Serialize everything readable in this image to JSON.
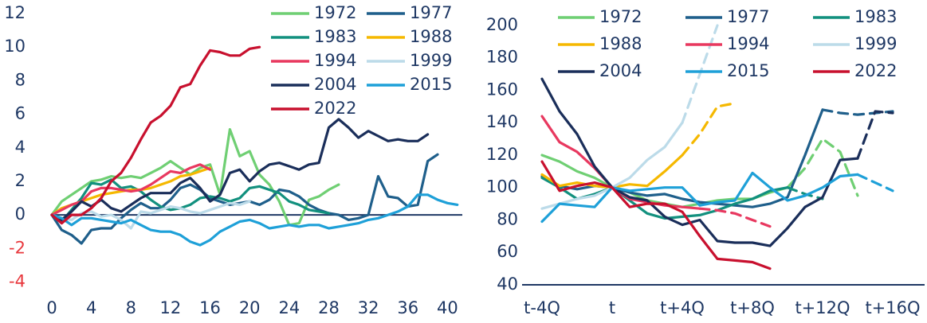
{
  "chart_data": [
    {
      "type": "line",
      "x": [
        0,
        1,
        2,
        3,
        4,
        5,
        6,
        7,
        8,
        9,
        10,
        11,
        12,
        13,
        14,
        15,
        16,
        17,
        18,
        19,
        20,
        21,
        22,
        23,
        24,
        25,
        26,
        27,
        28,
        29,
        30,
        31,
        32,
        33,
        34,
        35,
        36,
        37,
        38,
        39,
        40,
        41
      ],
      "xlim": [
        0,
        41.5
      ],
      "xticks": [
        0,
        4,
        8,
        12,
        16,
        20,
        24,
        28,
        32,
        36,
        40
      ],
      "ylim": [
        -4.5,
        12.5
      ],
      "yticks": [
        -4,
        -2,
        0,
        2,
        4,
        6,
        8,
        10,
        12
      ],
      "negative_tick_color": "#e8383d",
      "series": [
        {
          "name": "1972",
          "color": "#6fcf73",
          "values": [
            0,
            0.8,
            1.2,
            1.6,
            2,
            2.1,
            2.3,
            2.2,
            2.3,
            2.2,
            2.5,
            2.8,
            3.2,
            2.8,
            2.4,
            2.8,
            3.0,
            1.2,
            5.1,
            3.5,
            3.8,
            2.4,
            1.8,
            0.8,
            -0.6,
            -0.5,
            0.9,
            1.1,
            1.5,
            1.8,
            null,
            null,
            null,
            null,
            null,
            null,
            null,
            null,
            null,
            null,
            null,
            null
          ]
        },
        {
          "name": "1977",
          "color": "#1f5f8b",
          "values": [
            0,
            -0.9,
            -1.2,
            -1.7,
            -0.9,
            -0.8,
            -0.8,
            -0.2,
            0.3,
            0.7,
            0.4,
            0.4,
            0.9,
            1.6,
            1.8,
            1.5,
            1.0,
            0.8,
            0.6,
            0.7,
            0.8,
            0.6,
            0.9,
            1.5,
            1.4,
            1.1,
            0.6,
            0.3,
            0.1,
            0,
            -0.3,
            -0.2,
            0,
            2.3,
            1.1,
            1.0,
            0.5,
            0.6,
            3.2,
            3.6,
            null,
            null
          ]
        },
        {
          "name": "1983",
          "color": "#12907e",
          "values": [
            0,
            -0.4,
            0.3,
            1.0,
            1.9,
            1.8,
            2.1,
            1.6,
            1.7,
            1.4,
            0.9,
            0.5,
            0.3,
            0.4,
            0.6,
            1.0,
            1.1,
            1.0,
            0.8,
            1.0,
            1.6,
            1.7,
            1.5,
            1.3,
            0.8,
            0.6,
            0.3,
            0.2,
            0.1,
            null,
            null,
            null,
            null,
            null,
            null,
            null,
            null,
            null,
            null,
            null,
            null,
            null
          ]
        },
        {
          "name": "1988",
          "color": "#f5b800",
          "values": [
            0,
            0.4,
            0.6,
            0.8,
            1.0,
            1.2,
            1.3,
            1.4,
            1.5,
            1.5,
            1.6,
            1.8,
            2.0,
            2.3,
            2.4,
            2.6,
            2.8,
            null,
            null,
            null,
            null,
            null,
            null,
            null,
            null,
            null,
            null,
            null,
            null,
            null,
            null,
            null,
            null,
            null,
            null,
            null,
            null,
            null,
            null,
            null,
            null,
            null
          ]
        },
        {
          "name": "1994",
          "color": "#e8385f",
          "values": [
            0,
            0.3,
            0.6,
            0.8,
            1.4,
            1.6,
            1.6,
            1.5,
            1.4,
            1.5,
            1.8,
            2.2,
            2.6,
            2.5,
            2.8,
            3.0,
            2.7,
            null,
            null,
            null,
            null,
            null,
            null,
            null,
            null,
            null,
            null,
            null,
            null,
            null,
            null,
            null,
            null,
            null,
            null,
            null,
            null,
            null,
            null,
            null,
            null,
            null
          ]
        },
        {
          "name": "1999",
          "color": "#bcdbe9",
          "values": [
            0,
            -0.2,
            -0.3,
            0.1,
            0.2,
            -0.1,
            0,
            -0.3,
            -0.8,
            0.2,
            0.1,
            0.3,
            0.5,
            0.4,
            0.2,
            0.1,
            0.3,
            0.5,
            0.7,
            0.6,
            0.8,
            null,
            null,
            null,
            null,
            null,
            null,
            null,
            null,
            null,
            null,
            null,
            null,
            null,
            null,
            null,
            null,
            null,
            null,
            null,
            null,
            null
          ]
        },
        {
          "name": "2004",
          "color": "#1a2e5a",
          "values": [
            0,
            -0.3,
            0.2,
            0.8,
            0.5,
            0.9,
            0.4,
            0.2,
            0.6,
            1.0,
            1.3,
            1.3,
            1.3,
            1.9,
            2.2,
            1.6,
            0.8,
            1.2,
            2.5,
            2.7,
            2.0,
            2.6,
            3.0,
            3.1,
            2.9,
            2.7,
            3.0,
            3.1,
            5.2,
            5.7,
            5.2,
            4.6,
            5.0,
            4.7,
            4.4,
            4.5,
            4.4,
            4.4,
            4.8,
            null,
            null,
            null
          ]
        },
        {
          "name": "2015",
          "color": "#1ea0d8",
          "values": [
            0,
            -0.2,
            -0.6,
            -0.2,
            -0.2,
            -0.3,
            -0.4,
            -0.5,
            -0.3,
            -0.6,
            -0.9,
            -1.0,
            -1.0,
            -1.2,
            -1.6,
            -1.8,
            -1.5,
            -1.0,
            -0.7,
            -0.4,
            -0.3,
            -0.5,
            -0.8,
            -0.7,
            -0.6,
            -0.7,
            -0.6,
            -0.6,
            -0.8,
            -0.7,
            -0.6,
            -0.5,
            -0.3,
            -0.2,
            0,
            0.2,
            0.5,
            1.2,
            1.2,
            0.9,
            0.7,
            0.6
          ]
        },
        {
          "name": "2022",
          "color": "#c8102e",
          "values": [
            0,
            -0.5,
            0,
            0,
            0.4,
            1.0,
            2.0,
            2.5,
            3.4,
            4.5,
            5.5,
            5.9,
            6.5,
            7.6,
            7.8,
            8.9,
            9.8,
            9.7,
            9.5,
            9.5,
            9.9,
            10.0,
            null,
            null,
            null,
            null,
            null,
            null,
            null,
            null,
            null,
            null,
            null,
            null,
            null,
            null,
            null,
            null,
            null,
            null,
            null,
            null
          ]
        }
      ]
    },
    {
      "type": "line",
      "categories": [
        "t-4Q",
        null,
        null,
        null,
        "t",
        null,
        null,
        null,
        "t+4Q",
        null,
        null,
        null,
        "t+8Q",
        null,
        null,
        null,
        "t+12Q",
        null,
        null,
        null,
        "t+16Q"
      ],
      "ylim": [
        40,
        205
      ],
      "yticks": [
        40,
        60,
        80,
        100,
        120,
        140,
        160,
        180,
        200
      ],
      "series": [
        {
          "name": "1972",
          "color": "#6fcf73",
          "dash_from": 14,
          "values": [
            120,
            116,
            110,
            106,
            100,
            97,
            92,
            90,
            88,
            90,
            92,
            93,
            93,
            97,
            100,
            112,
            130,
            122,
            95,
            null,
            null
          ]
        },
        {
          "name": "1977",
          "color": "#1f5f8b",
          "dash_from": 16,
          "values": [
            107,
            101,
            99,
            101,
            100,
            97,
            95,
            96,
            93,
            91,
            90,
            89,
            88,
            90,
            94,
            120,
            148,
            146,
            145,
            146,
            147
          ]
        },
        {
          "name": "1983",
          "color": "#12907e",
          "dash_from": 14,
          "values": [
            106,
            100,
            93,
            96,
            100,
            92,
            84,
            81,
            82,
            83,
            86,
            90,
            93,
            98,
            100,
            96,
            93,
            null,
            null,
            null,
            null
          ]
        },
        {
          "name": "1988",
          "color": "#f5b800",
          "dash_from": 8,
          "values": [
            108,
            101,
            103,
            101,
            100,
            102,
            101,
            110,
            120,
            133,
            150,
            152,
            null,
            null,
            null,
            null,
            null,
            null,
            null,
            null,
            null
          ]
        },
        {
          "name": "1994",
          "color": "#e8385f",
          "dash_from": 9,
          "values": [
            144,
            128,
            122,
            112,
            100,
            93,
            91,
            89,
            88,
            87,
            86,
            84,
            80,
            76,
            null,
            null,
            null,
            null,
            null,
            null,
            null
          ]
        },
        {
          "name": "1999",
          "color": "#bcdbe9",
          "dash_from": 8,
          "values": [
            87,
            90,
            93,
            95,
            100,
            106,
            117,
            125,
            140,
            170,
            200,
            null,
            null,
            null,
            null,
            null,
            null,
            null,
            null,
            null,
            null
          ]
        },
        {
          "name": "2004",
          "color": "#1a2e5a",
          "dash_from": 18,
          "values": [
            167,
            147,
            133,
            113,
            100,
            94,
            92,
            82,
            77,
            80,
            67,
            66,
            66,
            64,
            75,
            88,
            94,
            117,
            118,
            147,
            146
          ]
        },
        {
          "name": "2015",
          "color": "#1ea0d8",
          "dash_from": 18,
          "values": [
            79,
            90,
            89,
            88,
            100,
            98,
            99,
            100,
            100,
            89,
            91,
            92,
            109,
            100,
            92,
            95,
            100,
            107,
            108,
            103,
            98
          ]
        },
        {
          "name": "2022",
          "color": "#c8102e",
          "values": [
            116,
            98,
            101,
            103,
            100,
            88,
            90,
            90,
            85,
            70,
            56,
            55,
            54,
            50,
            null,
            null,
            null,
            null,
            null,
            null,
            null
          ]
        }
      ]
    }
  ]
}
